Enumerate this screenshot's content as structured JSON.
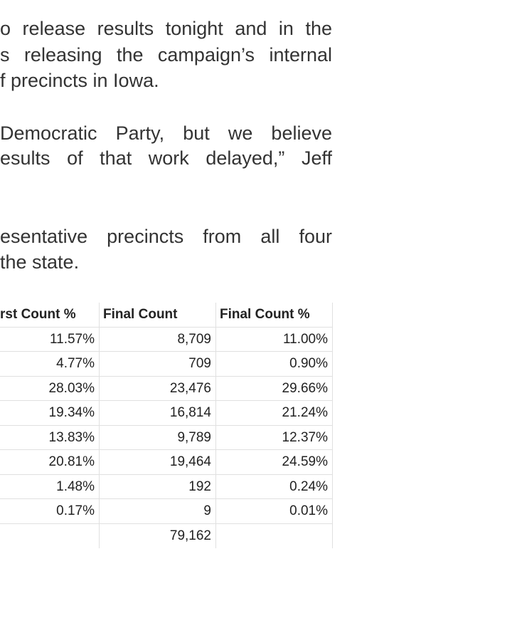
{
  "paragraphs": [
    [
      "o release results tonight and in the",
      "s releasing the campaign’s internal",
      "f precincts in Iowa."
    ],
    [
      "Democratic Party, but we believe",
      "esults of that work delayed,” Jeff"
    ],
    [
      "esentative precincts from all four",
      "the state."
    ]
  ],
  "table": {
    "columns": [
      "rst Count %",
      "Final Count",
      "Final Count %"
    ],
    "rows": [
      [
        "11.57%",
        "8,709",
        "11.00%"
      ],
      [
        "4.77%",
        "709",
        "0.90%"
      ],
      [
        "28.03%",
        "23,476",
        "29.66%"
      ],
      [
        "19.34%",
        "16,814",
        "21.24%"
      ],
      [
        "13.83%",
        "9,789",
        "12.37%"
      ],
      [
        "20.81%",
        "19,464",
        "24.59%"
      ],
      [
        "1.48%",
        "192",
        "0.24%"
      ],
      [
        "0.17%",
        "9",
        "0.01%"
      ]
    ],
    "total": "79,162"
  }
}
